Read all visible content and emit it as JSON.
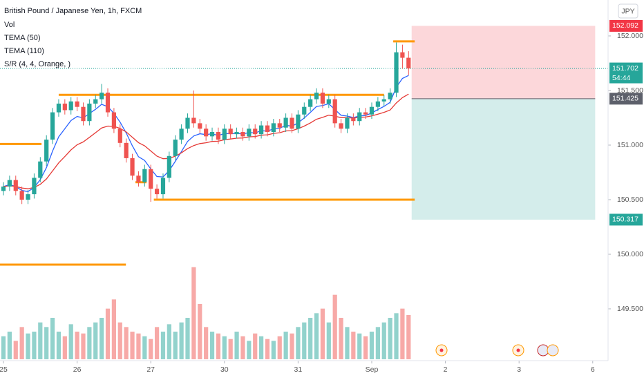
{
  "chart_data": {
    "type": "candlestick",
    "title": "British Pound / Japanese Yen, 1h, FXCM",
    "currency": "JPY",
    "indicators": [
      {
        "name": "Vol"
      },
      {
        "name": "TEMA (50)",
        "color": "#2962ff"
      },
      {
        "name": "TEMA (110)",
        "color": "#e53935"
      },
      {
        "name": "S/R (4, 4, Orange, )",
        "color": "#ff9800"
      }
    ],
    "up_color": "#26a69a",
    "down_color": "#ef5350",
    "x": [
      0,
      2,
      4,
      6,
      8,
      10,
      12,
      14,
      16,
      18,
      20,
      22,
      24,
      26,
      28,
      30,
      32,
      34,
      36,
      38,
      40,
      42,
      44,
      46,
      48,
      50,
      52,
      54,
      56,
      58,
      60,
      62,
      64,
      66,
      68,
      70,
      72,
      74,
      76,
      78,
      80,
      82,
      84,
      86,
      88,
      90,
      92,
      94,
      96,
      98,
      100,
      102,
      104,
      106,
      108,
      110,
      112,
      114,
      116,
      118,
      120,
      122,
      124,
      126,
      128,
      130,
      132
    ],
    "ohlc": [
      [
        150.58,
        150.66,
        150.54,
        150.62
      ],
      [
        150.62,
        150.72,
        150.58,
        150.68
      ],
      [
        150.68,
        150.72,
        150.54,
        150.58
      ],
      [
        150.58,
        150.62,
        150.46,
        150.5
      ],
      [
        150.5,
        150.59,
        150.46,
        150.55
      ],
      [
        150.55,
        150.74,
        150.51,
        150.7
      ],
      [
        150.7,
        150.89,
        150.66,
        150.85
      ],
      [
        150.85,
        151.09,
        150.81,
        151.05
      ],
      [
        151.05,
        151.34,
        151.01,
        151.3
      ],
      [
        151.3,
        151.42,
        151.26,
        151.38
      ],
      [
        151.38,
        151.42,
        151.28,
        151.32
      ],
      [
        151.32,
        151.44,
        151.28,
        151.4
      ],
      [
        151.4,
        151.44,
        151.31,
        151.35
      ],
      [
        151.35,
        151.39,
        151.18,
        151.22
      ],
      [
        151.22,
        151.42,
        151.18,
        151.38
      ],
      [
        151.38,
        151.46,
        151.34,
        151.42
      ],
      [
        151.42,
        151.56,
        151.38,
        151.48
      ],
      [
        151.48,
        151.52,
        151.26,
        151.3
      ],
      [
        151.3,
        151.34,
        151.11,
        151.15
      ],
      [
        151.15,
        151.19,
        150.98,
        151.02
      ],
      [
        151.02,
        151.06,
        150.84,
        150.88
      ],
      [
        150.88,
        150.92,
        150.68,
        150.72
      ],
      [
        150.72,
        150.76,
        150.62,
        150.66
      ],
      [
        150.66,
        150.82,
        150.62,
        150.78
      ],
      [
        150.78,
        150.82,
        150.48,
        150.6
      ],
      [
        150.6,
        150.64,
        150.51,
        150.55
      ],
      [
        150.55,
        150.74,
        150.51,
        150.7
      ],
      [
        150.7,
        150.94,
        150.66,
        150.9
      ],
      [
        150.9,
        151.09,
        150.86,
        151.05
      ],
      [
        151.05,
        151.19,
        151.01,
        151.15
      ],
      [
        151.15,
        151.29,
        151.11,
        151.25
      ],
      [
        151.25,
        151.5,
        151.16,
        151.2
      ],
      [
        151.2,
        151.24,
        151.11,
        151.15
      ],
      [
        151.15,
        151.19,
        151.04,
        151.08
      ],
      [
        151.08,
        151.16,
        151.04,
        151.12
      ],
      [
        151.12,
        151.16,
        151.01,
        151.05
      ],
      [
        151.05,
        151.19,
        151.01,
        151.15
      ],
      [
        151.15,
        151.19,
        151.06,
        151.1
      ],
      [
        151.1,
        151.16,
        151.06,
        151.12
      ],
      [
        151.12,
        151.16,
        151.04,
        151.08
      ],
      [
        151.08,
        151.19,
        151.04,
        151.15
      ],
      [
        151.15,
        151.19,
        151.06,
        151.1
      ],
      [
        151.1,
        151.22,
        151.06,
        151.18
      ],
      [
        151.18,
        151.22,
        151.08,
        151.12
      ],
      [
        151.12,
        151.24,
        151.08,
        151.2
      ],
      [
        151.2,
        151.24,
        151.12,
        151.16
      ],
      [
        151.16,
        151.29,
        151.12,
        151.25
      ],
      [
        151.25,
        151.29,
        151.11,
        151.15
      ],
      [
        151.15,
        151.32,
        151.11,
        151.28
      ],
      [
        151.28,
        151.39,
        151.24,
        151.35
      ],
      [
        151.35,
        151.46,
        151.31,
        151.42
      ],
      [
        151.42,
        151.52,
        151.38,
        151.48
      ],
      [
        151.48,
        151.52,
        151.34,
        151.38
      ],
      [
        151.38,
        151.46,
        151.34,
        151.42
      ],
      [
        151.42,
        151.46,
        151.16,
        151.2
      ],
      [
        151.2,
        151.24,
        151.11,
        151.15
      ],
      [
        151.15,
        151.29,
        151.11,
        151.25
      ],
      [
        151.25,
        151.29,
        151.18,
        151.22
      ],
      [
        151.22,
        151.34,
        151.18,
        151.3
      ],
      [
        151.3,
        151.34,
        151.24,
        151.28
      ],
      [
        151.28,
        151.39,
        151.24,
        151.35
      ],
      [
        151.35,
        151.44,
        151.31,
        151.4
      ],
      [
        151.4,
        151.46,
        151.36,
        151.42
      ],
      [
        151.42,
        151.52,
        151.38,
        151.48
      ],
      [
        151.48,
        151.94,
        151.44,
        151.85
      ],
      [
        151.85,
        151.92,
        151.7,
        151.8
      ],
      [
        151.8,
        151.86,
        151.64,
        151.702
      ]
    ],
    "volume": [
      25,
      30,
      20,
      35,
      28,
      30,
      40,
      35,
      45,
      30,
      25,
      38,
      30,
      28,
      35,
      40,
      45,
      55,
      65,
      40,
      35,
      30,
      28,
      25,
      22,
      35,
      30,
      38,
      30,
      40,
      45,
      100,
      60,
      35,
      30,
      28,
      25,
      22,
      30,
      25,
      20,
      28,
      25,
      22,
      20,
      25,
      30,
      28,
      35,
      40,
      45,
      50,
      55,
      40,
      70,
      45,
      35,
      30,
      28,
      25,
      30,
      35,
      40,
      45,
      50,
      55,
      48
    ],
    "volume_lim": [
      0,
      105
    ],
    "xlim": [
      -1.126,
      197
    ],
    "xticks": [
      {
        "value": 0,
        "label": "25"
      },
      {
        "value": 24,
        "label": "26"
      },
      {
        "value": 48,
        "label": "27"
      },
      {
        "value": 72,
        "label": "30"
      },
      {
        "value": 96,
        "label": "31"
      },
      {
        "value": 120,
        "label": "Sep"
      },
      {
        "value": 144,
        "label": "2"
      },
      {
        "value": 168,
        "label": "3"
      },
      {
        "value": 192,
        "label": "6"
      }
    ],
    "ylim": [
      149.038,
      152.329
    ],
    "yticks": [
      {
        "value": 152,
        "label": "152.000"
      },
      {
        "value": 151.5,
        "label": "151.500"
      },
      {
        "value": 151,
        "label": "151.000"
      },
      {
        "value": 150.5,
        "label": "150.500"
      },
      {
        "value": 150,
        "label": "150.000"
      },
      {
        "value": 149.5,
        "label": "149.500"
      }
    ],
    "levels": [
      {
        "price": 151.01,
        "x": [
          -1.126,
          12.4
        ]
      },
      {
        "price": 151.46,
        "x": [
          18,
          124
        ]
      },
      {
        "price": 150.5,
        "x": [
          49,
          134
        ]
      },
      {
        "price": 149.905,
        "x": [
          -1.126,
          39.9
        ]
      },
      {
        "price": 151.95,
        "x": [
          127,
          134
        ]
      },
      {
        "price": 150.66,
        "x": [
          43,
          46.6
        ]
      }
    ],
    "position": {
      "target": 152.092,
      "entry": 151.425,
      "stop": 150.317,
      "x": [
        133,
        192.8
      ],
      "target_color": "#f23645",
      "entry_color": "#5d606b",
      "stop_color": "#26a69a"
    },
    "last_price": 151.702,
    "countdown": "54:44"
  }
}
